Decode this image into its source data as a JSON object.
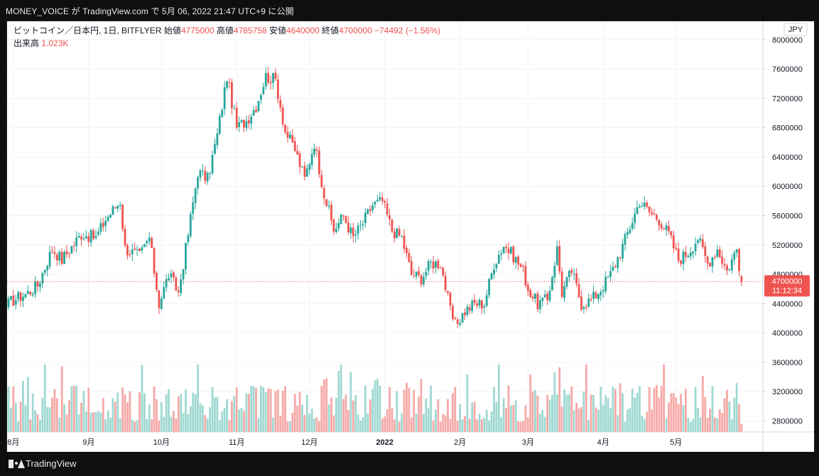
{
  "header": {
    "title": "MONEY_VOICE が TradingView.com で 5月 06, 2022 21:47 UTC+9 に公開"
  },
  "footer": {
    "brand": "TradingView"
  },
  "legend": {
    "symbol": "ビットコイン／日本円, 1日, BITFLYER",
    "open_label": "始値",
    "open_value": "4775000",
    "high_label": "高値",
    "high_value": "4785758",
    "low_label": "安値",
    "low_value": "4640000",
    "close_label": "終値",
    "close_value": "4700000",
    "change": "−74492 (−1.56%)",
    "volume_label": "出来高",
    "volume_value": "1.023K"
  },
  "currency_button": "JPY",
  "price_tag": {
    "price": "4700000",
    "countdown": "11:12:34"
  },
  "colors": {
    "up": "#26a69a",
    "down": "#ef5350",
    "up_volume": "#9fd9d2",
    "down_volume": "#f6a9a7",
    "grid": "#f0f3fa",
    "text": "#131722",
    "axis_text": "#131722"
  },
  "chart_data": {
    "type": "candlestick",
    "title": "ビットコイン／日本円, 1日, BITFLYER",
    "y_range": [
      2650000,
      8250000
    ],
    "y_ticks": [
      "8000000",
      "7600000",
      "7200000",
      "6800000",
      "6400000",
      "6000000",
      "5600000",
      "5200000",
      "4800000",
      "4400000",
      "4000000",
      "3600000",
      "3200000",
      "2800000"
    ],
    "x_ticks": [
      {
        "label": "8月",
        "day": 2
      },
      {
        "label": "9月",
        "day": 33
      },
      {
        "label": "10月",
        "day": 63
      },
      {
        "label": "11月",
        "day": 94
      },
      {
        "label": "12月",
        "day": 124
      },
      {
        "label": "2022",
        "day": 155
      },
      {
        "label": "2月",
        "day": 186
      },
      {
        "label": "3月",
        "day": 214
      },
      {
        "label": "4月",
        "day": 245
      },
      {
        "label": "5月",
        "day": 275
      }
    ],
    "anchor_closes": [
      [
        0,
        4400000
      ],
      [
        2,
        4450000
      ],
      [
        8,
        4550000
      ],
      [
        12,
        4650000
      ],
      [
        18,
        5150000
      ],
      [
        22,
        5000000
      ],
      [
        30,
        5350000
      ],
      [
        36,
        5300000
      ],
      [
        40,
        5550000
      ],
      [
        46,
        5800000
      ],
      [
        48,
        5150000
      ],
      [
        54,
        5050000
      ],
      [
        58,
        5300000
      ],
      [
        62,
        4400000
      ],
      [
        66,
        4800000
      ],
      [
        70,
        4550000
      ],
      [
        74,
        5350000
      ],
      [
        78,
        6200000
      ],
      [
        82,
        6100000
      ],
      [
        86,
        6700000
      ],
      [
        90,
        7500000
      ],
      [
        94,
        6800000
      ],
      [
        98,
        6900000
      ],
      [
        102,
        7100000
      ],
      [
        106,
        7500000
      ],
      [
        110,
        7450000
      ],
      [
        114,
        6750000
      ],
      [
        118,
        6500000
      ],
      [
        122,
        6100000
      ],
      [
        126,
        6600000
      ],
      [
        130,
        5900000
      ],
      [
        134,
        5400000
      ],
      [
        138,
        5600000
      ],
      [
        142,
        5300000
      ],
      [
        146,
        5500000
      ],
      [
        150,
        5750000
      ],
      [
        154,
        5800000
      ],
      [
        158,
        5400000
      ],
      [
        162,
        5300000
      ],
      [
        166,
        4800000
      ],
      [
        170,
        4750000
      ],
      [
        174,
        4950000
      ],
      [
        178,
        4950000
      ],
      [
        182,
        4300000
      ],
      [
        184,
        4100000
      ],
      [
        188,
        4300000
      ],
      [
        192,
        4400000
      ],
      [
        196,
        4400000
      ],
      [
        200,
        4950000
      ],
      [
        204,
        5200000
      ],
      [
        208,
        5050000
      ],
      [
        212,
        4850000
      ],
      [
        214,
        4600000
      ],
      [
        218,
        4400000
      ],
      [
        222,
        4450000
      ],
      [
        226,
        5150000
      ],
      [
        228,
        4550000
      ],
      [
        232,
        4850000
      ],
      [
        236,
        4400000
      ],
      [
        240,
        4450000
      ],
      [
        244,
        4600000
      ],
      [
        248,
        4800000
      ],
      [
        252,
        5100000
      ],
      [
        256,
        5450000
      ],
      [
        260,
        5800000
      ],
      [
        264,
        5650000
      ],
      [
        268,
        5550000
      ],
      [
        272,
        5350000
      ],
      [
        276,
        5000000
      ],
      [
        280,
        5100000
      ],
      [
        284,
        5300000
      ],
      [
        288,
        4950000
      ],
      [
        292,
        5150000
      ],
      [
        296,
        4850000
      ],
      [
        300,
        5150000
      ],
      [
        302,
        4700000
      ]
    ],
    "last_candle": {
      "open": 4775000,
      "high": 4785758,
      "low": 4640000,
      "close": 4700000
    }
  }
}
